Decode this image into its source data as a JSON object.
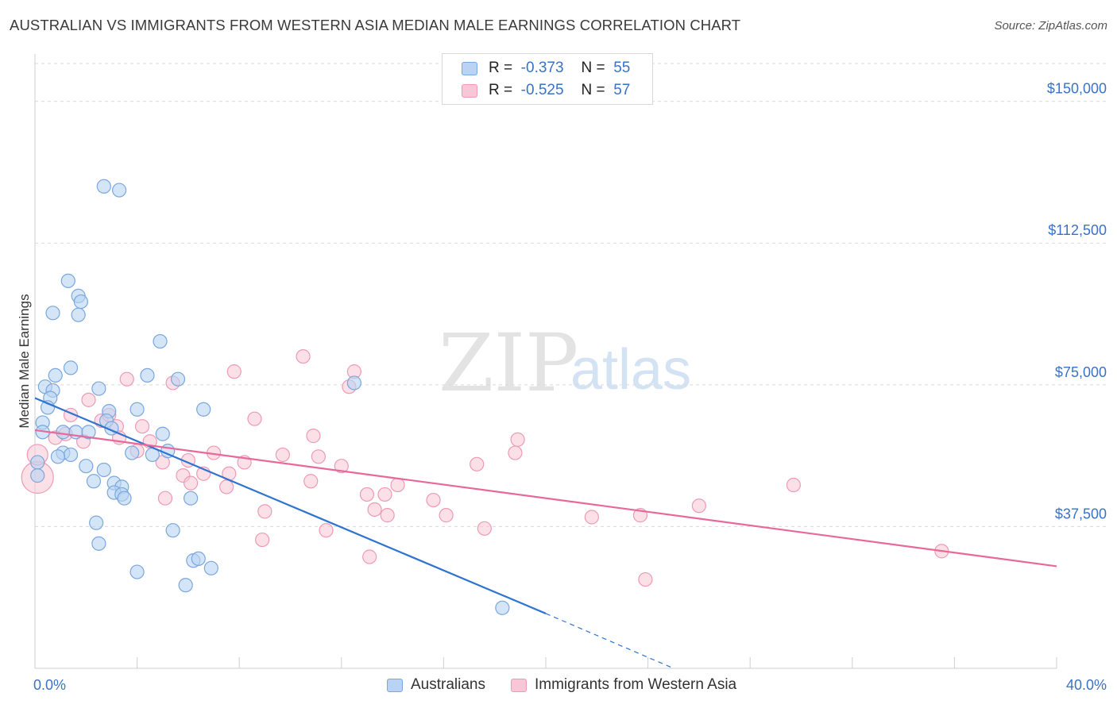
{
  "header": {
    "title": "AUSTRALIAN VS IMMIGRANTS FROM WESTERN ASIA MEDIAN MALE EARNINGS CORRELATION CHART",
    "source": "Source: ZipAtlas.com"
  },
  "watermark": {
    "zip": "ZIP",
    "atlas": "atlas"
  },
  "legend": {
    "r_label": "R =",
    "n_label": "N =",
    "rows": [
      {
        "r": "-0.373",
        "n": "55",
        "color": "#a8c8f0"
      },
      {
        "r": "-0.525",
        "n": "57",
        "color": "#f6b8cc"
      }
    ]
  },
  "bottom_legend": [
    "Australians",
    "Immigrants from Western Asia"
  ],
  "colors": {
    "blue_fill": "#b8d3f3",
    "blue_stroke": "#7aa7dd",
    "blue_line": "#2f74d0",
    "pink_fill": "#f8c6d6",
    "pink_stroke": "#ee9ab5",
    "pink_line": "#e8689a",
    "axis_text": "#3a72c4"
  },
  "chart_data": {
    "type": "scatter",
    "title": "AUSTRALIAN VS IMMIGRANTS FROM WESTERN ASIA MEDIAN MALE EARNINGS CORRELATION CHART",
    "xlabel": "",
    "ylabel": "Median Male Earnings",
    "xlim": [
      0,
      40
    ],
    "ylim": [
      0,
      160000
    ],
    "x_tick_labels": [
      "0.0%",
      "40.0%"
    ],
    "y_ticks": [
      37500,
      75000,
      112500,
      150000
    ],
    "y_tick_labels": [
      "$37,500",
      "$75,000",
      "$112,500",
      "$150,000"
    ],
    "grid": "horizontal dashed",
    "series": [
      {
        "name": "Australians",
        "r": -0.373,
        "n": 55,
        "trend": {
          "x": [
            0,
            20
          ],
          "y": [
            71500,
            14500
          ],
          "dashed_to": [
            25,
            0
          ]
        },
        "points": [
          [
            2.7,
            127500
          ],
          [
            3.3,
            126500
          ],
          [
            1.3,
            102500
          ],
          [
            1.7,
            98500
          ],
          [
            1.8,
            97000
          ],
          [
            0.7,
            94000
          ],
          [
            1.7,
            93500
          ],
          [
            4.9,
            86500
          ],
          [
            1.4,
            79500
          ],
          [
            0.8,
            77500
          ],
          [
            4.4,
            77500
          ],
          [
            5.6,
            76500
          ],
          [
            12.5,
            75500
          ],
          [
            0.4,
            74500
          ],
          [
            0.7,
            73500
          ],
          [
            2.5,
            74000
          ],
          [
            0.6,
            71500
          ],
          [
            0.5,
            69000
          ],
          [
            4.0,
            68500
          ],
          [
            6.6,
            68500
          ],
          [
            2.9,
            68000
          ],
          [
            0.3,
            65000
          ],
          [
            2.8,
            65500
          ],
          [
            3.0,
            63500
          ],
          [
            0.3,
            62500
          ],
          [
            1.1,
            62500
          ],
          [
            1.6,
            62500
          ],
          [
            2.1,
            62500
          ],
          [
            1.1,
            57000
          ],
          [
            1.4,
            56500
          ],
          [
            0.9,
            56000
          ],
          [
            5.2,
            57500
          ],
          [
            4.6,
            56500
          ],
          [
            3.8,
            57000
          ],
          [
            0.1,
            54500
          ],
          [
            2.0,
            53500
          ],
          [
            2.7,
            52500
          ],
          [
            0.1,
            51000
          ],
          [
            2.3,
            49500
          ],
          [
            3.1,
            49000
          ],
          [
            3.4,
            48000
          ],
          [
            3.1,
            46500
          ],
          [
            3.4,
            46000
          ],
          [
            3.5,
            45000
          ],
          [
            6.1,
            45000
          ],
          [
            2.4,
            38500
          ],
          [
            5.4,
            36500
          ],
          [
            2.5,
            33000
          ],
          [
            6.2,
            28500
          ],
          [
            6.4,
            29000
          ],
          [
            6.9,
            26500
          ],
          [
            4.0,
            25500
          ],
          [
            5.9,
            22000
          ],
          [
            18.3,
            16000
          ],
          [
            5.0,
            62000
          ]
        ]
      },
      {
        "name": "Immigrants from Western Asia",
        "r": -0.525,
        "n": 57,
        "trend": {
          "x": [
            0,
            40
          ],
          "y": [
            63000,
            27000
          ]
        },
        "points": [
          [
            0.1,
            50500
          ],
          [
            0.1,
            56500
          ],
          [
            0.8,
            61000
          ],
          [
            1.4,
            67000
          ],
          [
            2.1,
            71000
          ],
          [
            3.6,
            76500
          ],
          [
            5.4,
            75500
          ],
          [
            7.8,
            78500
          ],
          [
            10.5,
            82500
          ],
          [
            12.5,
            78500
          ],
          [
            12.3,
            74500
          ],
          [
            2.6,
            65500
          ],
          [
            2.9,
            67000
          ],
          [
            3.2,
            64000
          ],
          [
            4.2,
            64000
          ],
          [
            8.6,
            66000
          ],
          [
            1.9,
            60000
          ],
          [
            3.3,
            61000
          ],
          [
            4.0,
            57500
          ],
          [
            10.9,
            61500
          ],
          [
            18.9,
            60500
          ],
          [
            7.0,
            57000
          ],
          [
            9.7,
            56500
          ],
          [
            11.1,
            56000
          ],
          [
            18.8,
            57000
          ],
          [
            5.0,
            54500
          ],
          [
            6.0,
            55000
          ],
          [
            8.2,
            54500
          ],
          [
            12.0,
            53500
          ],
          [
            17.3,
            54000
          ],
          [
            5.8,
            51000
          ],
          [
            6.6,
            51500
          ],
          [
            7.6,
            51500
          ],
          [
            10.8,
            49500
          ],
          [
            14.2,
            48500
          ],
          [
            7.5,
            48000
          ],
          [
            6.1,
            49000
          ],
          [
            13.0,
            46000
          ],
          [
            13.7,
            46000
          ],
          [
            15.6,
            44500
          ],
          [
            5.1,
            45000
          ],
          [
            9.0,
            41500
          ],
          [
            13.3,
            42000
          ],
          [
            13.8,
            40500
          ],
          [
            16.1,
            40500
          ],
          [
            21.8,
            40000
          ],
          [
            23.7,
            40500
          ],
          [
            26.0,
            43000
          ],
          [
            29.7,
            48500
          ],
          [
            11.4,
            36500
          ],
          [
            17.6,
            37000
          ],
          [
            8.9,
            34000
          ],
          [
            13.1,
            29500
          ],
          [
            35.5,
            31000
          ],
          [
            23.9,
            23500
          ],
          [
            1.2,
            62000
          ],
          [
            4.5,
            60000
          ]
        ]
      }
    ]
  }
}
